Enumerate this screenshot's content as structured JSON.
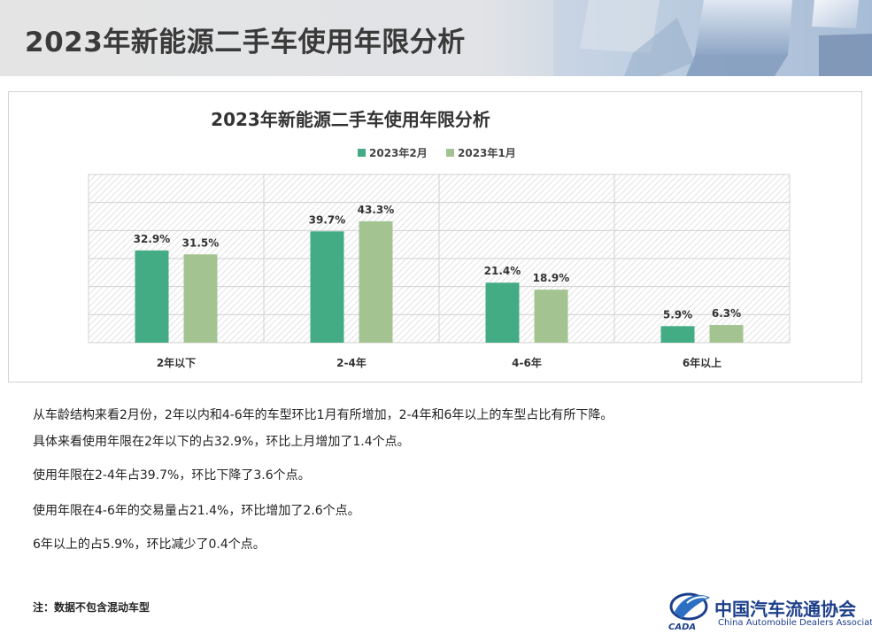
{
  "header": {
    "title": "2023年新能源二手车使用年限分析"
  },
  "chart_data": {
    "type": "bar",
    "title": "2023年新能源二手车使用年限分析",
    "categories": [
      "2年以下",
      "2-4年",
      "4-6年",
      "6年以上"
    ],
    "series": [
      {
        "name": "2023年2月",
        "values": [
          32.9,
          39.7,
          21.4,
          5.9
        ],
        "labels": [
          "32.9%",
          "39.7%",
          "21.4%",
          "5.9%"
        ],
        "color": "#43ac84"
      },
      {
        "name": "2023年1月",
        "values": [
          31.5,
          43.3,
          18.9,
          6.3
        ],
        "labels": [
          "31.5%",
          "43.3%",
          "18.9%",
          "6.3%"
        ],
        "color": "#a3c490"
      }
    ],
    "ylim": [
      0,
      60
    ],
    "grid": true,
    "legend": "top-center"
  },
  "paragraphs": [
    "从车龄结构来看2月份，2年以内和4-6年的车型环比1月有所增加，2-4年和6年以上的车型占比有所下降。",
    "具体来看使用年限在2年以下的占32.9%，环比上月增加了1.4个点。",
    "使用年限在2-4年占39.7%，环比下降了3.6个点。",
    "使用年限在4-6年的交易量占21.4%，环比增加了2.6个点。",
    "6年以上的占5.9%，环比减少了0.4个点。"
  ],
  "note": "注：数据不包含混动车型",
  "logo": {
    "name_cn": "中国汽车流通协会",
    "name_en": "China Automobile Dealers Association",
    "abbr": "CADA"
  }
}
